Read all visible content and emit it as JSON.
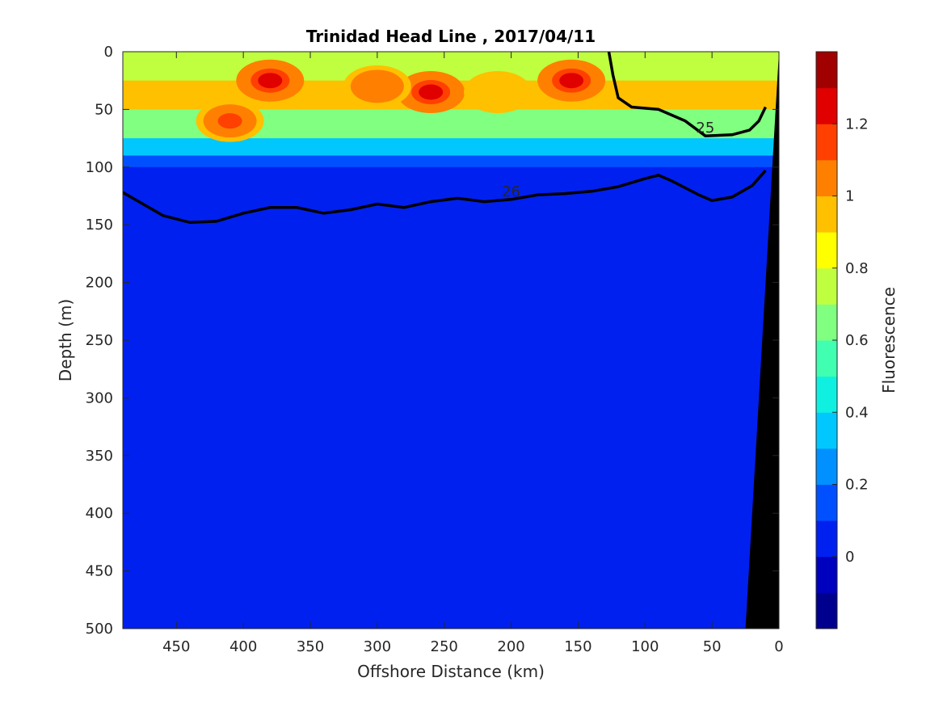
{
  "chart_data": {
    "type": "heatmap",
    "title": "Trinidad Head Line , 2017/04/11",
    "xlabel": "Offshore Distance (km)",
    "ylabel": "Depth (m)",
    "colorbar_label": "Fluorescence",
    "x_axis": {
      "range": [
        490,
        0
      ],
      "reversed": true,
      "ticks": [
        "450",
        "400",
        "350",
        "300",
        "250",
        "200",
        "150",
        "100",
        "50",
        "0"
      ]
    },
    "y_axis": {
      "range": [
        0,
        500
      ],
      "reversed": true,
      "ticks": [
        "0",
        "50",
        "100",
        "150",
        "200",
        "250",
        "300",
        "350",
        "400",
        "450",
        "500"
      ]
    },
    "colorbar": {
      "range": [
        -0.2,
        1.4
      ],
      "ticks": [
        "0",
        "0.2",
        "0.4",
        "0.6",
        "0.8",
        "1",
        "1.2"
      ],
      "levels": [
        "#00008f",
        "#0000bf",
        "#0020f0",
        "#0050ff",
        "#0090ff",
        "#00c8ff",
        "#10f0e0",
        "#40ffb0",
        "#80ff80",
        "#c0ff40",
        "#ffff00",
        "#ffc000",
        "#ff8000",
        "#ff4000",
        "#e00000",
        "#a00000"
      ]
    },
    "fluorescence_profile": {
      "depths": [
        0,
        25,
        50,
        75,
        90,
        100,
        120,
        500
      ],
      "values": [
        0.75,
        0.95,
        0.6,
        0.3,
        0.1,
        0.07,
        0.06,
        0.05
      ]
    },
    "high_fluorescence_patches": [
      {
        "x": 380,
        "depth": 25,
        "value": 1.2
      },
      {
        "x": 410,
        "depth": 60,
        "value": 1.1
      },
      {
        "x": 260,
        "depth": 35,
        "value": 1.2
      },
      {
        "x": 300,
        "depth": 30,
        "value": 1.05
      },
      {
        "x": 155,
        "depth": 25,
        "value": 1.2
      },
      {
        "x": 210,
        "depth": 35,
        "value": 0.9
      }
    ],
    "density_contours": [
      {
        "label": "25",
        "bold": true,
        "points": [
          [
            127,
            0
          ],
          [
            124,
            20
          ],
          [
            120,
            40
          ],
          [
            110,
            48
          ],
          [
            90,
            50
          ],
          [
            70,
            60
          ],
          [
            55,
            73
          ],
          [
            35,
            72
          ],
          [
            22,
            68
          ],
          [
            15,
            60
          ],
          [
            10,
            48
          ]
        ]
      },
      {
        "label": "26",
        "bold": true,
        "points": [
          [
            490,
            122
          ],
          [
            475,
            132
          ],
          [
            460,
            142
          ],
          [
            440,
            148
          ],
          [
            420,
            147
          ],
          [
            400,
            140
          ],
          [
            380,
            135
          ],
          [
            360,
            135
          ],
          [
            340,
            140
          ],
          [
            320,
            137
          ],
          [
            300,
            132
          ],
          [
            280,
            135
          ],
          [
            260,
            130
          ],
          [
            240,
            127
          ],
          [
            220,
            130
          ],
          [
            200,
            128
          ],
          [
            180,
            124
          ],
          [
            160,
            123
          ],
          [
            140,
            121
          ],
          [
            120,
            117
          ],
          [
            100,
            110
          ],
          [
            90,
            107
          ],
          [
            80,
            112
          ],
          [
            70,
            118
          ],
          [
            60,
            124
          ],
          [
            50,
            129
          ],
          [
            35,
            126
          ],
          [
            20,
            116
          ],
          [
            10,
            103
          ]
        ]
      }
    ]
  }
}
